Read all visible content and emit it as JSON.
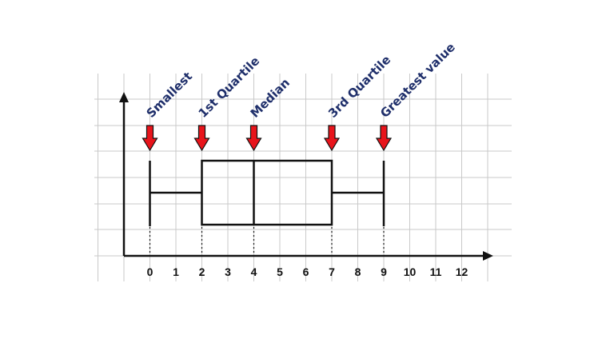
{
  "chart_data": {
    "type": "box",
    "xlim": [
      -1,
      13
    ],
    "x_ticks": [
      0,
      1,
      2,
      3,
      4,
      5,
      6,
      7,
      8,
      9,
      10,
      11,
      12
    ],
    "x_tick_labels": [
      "0",
      "1",
      "2",
      "3",
      "4",
      "5",
      "6",
      "7",
      "8",
      "9",
      "10",
      "11",
      "12"
    ],
    "box": {
      "min": 0,
      "q1": 2,
      "median": 4,
      "q3": 7,
      "max": 9
    },
    "annotations": [
      {
        "text": "Smallest",
        "x": 0
      },
      {
        "text": "1st Quartile",
        "x": 2
      },
      {
        "text": "Median",
        "x": 4
      },
      {
        "text": "3rd Quartile",
        "x": 7
      },
      {
        "text": "Greatest value",
        "x": 9
      }
    ],
    "grid": true,
    "colors": {
      "arrow": "#e8141b",
      "label": "#1f2f6b",
      "box": "#111111",
      "grid": "#c9c9c9"
    }
  }
}
